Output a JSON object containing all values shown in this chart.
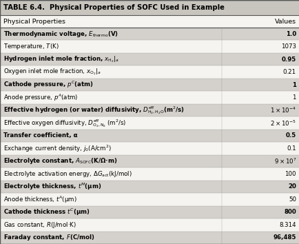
{
  "title": "TABLE 6.4.  Physical Properties of SOFC Used in Example",
  "col_headers": [
    "Physical Properties",
    "Values"
  ],
  "rows": [
    [
      "Thermodynamic voltage, $E_{\\mathrm{thermo}}$(V)",
      "1.0"
    ],
    [
      "Temperature, $T$(K)",
      "1073"
    ],
    [
      "Hydrogen inlet mole fraction, $x_{\\mathrm{H_2}}|_a$",
      "0.95"
    ],
    [
      "Oxygen inlet mole fraction, $x_{\\mathrm{O_2}}|_a$",
      "0.21"
    ],
    [
      "Cathode pressure, $p^C$(atm)",
      "1"
    ],
    [
      "Anode pressure, $p^A$(atm)",
      "1"
    ],
    [
      "Effective hydrogen (or water) diffusivity, $D^{\\mathrm{eff}}_{\\mathrm{H_2,H_2O}}$(m$^2$/s)",
      "$1 \\times 10^{-4}$"
    ],
    [
      "Effective oxygen diffusivity, $D^{\\mathrm{eff}}_{\\mathrm{O_2,N_2}}$ (m$^2$/s)",
      "$2 \\times 10^{-5}$"
    ],
    [
      "Transfer coefficient, α",
      "0.5"
    ],
    [
      "Exchange current density, $j_0$(A/cm$^2$)",
      "0.1"
    ],
    [
      "Electrolyte constant, $A_{\\mathrm{SOFC}}$(K/Ω·m)",
      "$9 \\times 10^7$"
    ],
    [
      "Electrolyte activation energy, Δ$G_{\\mathrm{act}}$(kJ/mol)",
      "100"
    ],
    [
      "Electrolyte thickness, $t^M$(µm)",
      "20"
    ],
    [
      "Anode thickness, $t^A$(µm)",
      "50"
    ],
    [
      "Cathode thickness $t^C$(µm)",
      "800"
    ],
    [
      "Gas constant, $R$(J/mol·K)",
      "8.314"
    ],
    [
      "Faraday constant, $F$(C/mol)",
      "96,485"
    ]
  ],
  "shaded_rows": [
    0,
    2,
    4,
    6,
    8,
    10,
    12,
    14,
    16
  ],
  "shaded_color": "#d4d0cb",
  "unshaded_color": "#f5f4f0",
  "title_bg": "#c8c4be",
  "header_bg": "#f5f4f0",
  "border_color": "#555555",
  "text_color": "#000000",
  "col_split": 0.74
}
